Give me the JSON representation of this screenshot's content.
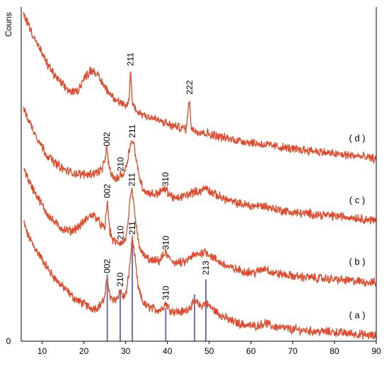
{
  "chart_data": {
    "type": "line",
    "title": "",
    "xlabel": "",
    "ylabel": "Couns",
    "xlim": [
      5,
      90
    ],
    "ylim": [
      0,
      10
    ],
    "grid": false,
    "legend": "none",
    "x_ticks": [
      10,
      20,
      30,
      40,
      50,
      60,
      70,
      80,
      90
    ],
    "y_tick_labels": [
      {
        "value": 0,
        "label": "0"
      }
    ],
    "series_color": "#e8402a",
    "noise_color": "#8a8a3a",
    "reference_color": "#6f6fb0",
    "series": [
      {
        "label": "( a )",
        "points": [
          [
            5.6,
            3.55
          ],
          [
            6.5,
            3.2
          ],
          [
            8,
            2.85
          ],
          [
            10,
            2.45
          ],
          [
            12,
            2.05
          ],
          [
            14,
            1.75
          ],
          [
            16,
            1.5
          ],
          [
            18,
            1.25
          ],
          [
            20,
            1.12
          ],
          [
            21.5,
            1.0
          ],
          [
            23,
            1.0
          ],
          [
            24,
            1.1
          ],
          [
            25,
            1.3
          ],
          [
            25.6,
            1.95
          ],
          [
            26.2,
            1.35
          ],
          [
            27,
            1.2
          ],
          [
            28,
            1.3
          ],
          [
            28.7,
            1.55
          ],
          [
            29.4,
            1.3
          ],
          [
            30.2,
            1.45
          ],
          [
            31,
            2.3
          ],
          [
            31.6,
            3.1
          ],
          [
            32.3,
            2.4
          ],
          [
            33,
            1.6
          ],
          [
            34,
            1.2
          ],
          [
            35,
            1.05
          ],
          [
            36,
            1.0
          ],
          [
            37,
            0.95
          ],
          [
            38.5,
            0.95
          ],
          [
            39.6,
            1.15
          ],
          [
            40.5,
            0.95
          ],
          [
            42,
            0.88
          ],
          [
            44,
            0.88
          ],
          [
            46,
            1.1
          ],
          [
            47,
            1.15
          ],
          [
            48,
            1.05
          ],
          [
            49.2,
            1.15
          ],
          [
            50,
            1.05
          ],
          [
            52,
            0.85
          ],
          [
            55,
            0.62
          ],
          [
            58,
            0.5
          ],
          [
            61,
            0.45
          ],
          [
            63.5,
            0.55
          ],
          [
            65,
            0.45
          ],
          [
            70,
            0.35
          ],
          [
            75,
            0.3
          ],
          [
            80,
            0.27
          ],
          [
            85,
            0.22
          ],
          [
            90,
            0.15
          ]
        ]
      },
      {
        "label": "( b )",
        "points": [
          [
            5.6,
            5.2
          ],
          [
            7,
            4.75
          ],
          [
            9,
            4.3
          ],
          [
            11,
            3.85
          ],
          [
            13,
            3.55
          ],
          [
            15,
            3.35
          ],
          [
            17,
            3.3
          ],
          [
            19,
            3.45
          ],
          [
            21,
            3.7
          ],
          [
            22,
            3.8
          ],
          [
            23,
            3.7
          ],
          [
            24,
            3.5
          ],
          [
            25,
            3.35
          ],
          [
            25.6,
            4.2
          ],
          [
            26.2,
            3.3
          ],
          [
            27,
            3.0
          ],
          [
            28,
            2.95
          ],
          [
            28.8,
            2.95
          ],
          [
            29.5,
            2.95
          ],
          [
            30.3,
            3.2
          ],
          [
            31,
            4.1
          ],
          [
            31.5,
            4.55
          ],
          [
            32.1,
            3.9
          ],
          [
            33,
            3.0
          ],
          [
            34,
            2.6
          ],
          [
            35,
            2.5
          ],
          [
            36,
            2.4
          ],
          [
            38,
            2.4
          ],
          [
            39.6,
            2.65
          ],
          [
            40.5,
            2.45
          ],
          [
            42,
            2.35
          ],
          [
            44,
            2.35
          ],
          [
            46,
            2.55
          ],
          [
            47.5,
            2.6
          ],
          [
            49,
            2.7
          ],
          [
            50,
            2.6
          ],
          [
            52,
            2.4
          ],
          [
            55,
            2.2
          ],
          [
            58,
            2.1
          ],
          [
            61,
            2.05
          ],
          [
            63.5,
            2.2
          ],
          [
            65,
            2.05
          ],
          [
            70,
            1.95
          ],
          [
            75,
            1.9
          ],
          [
            80,
            1.85
          ],
          [
            85,
            1.8
          ],
          [
            90,
            1.75
          ]
        ]
      },
      {
        "label": "( c )",
        "points": [
          [
            5.6,
            6.95
          ],
          [
            7,
            6.55
          ],
          [
            9,
            6.05
          ],
          [
            11,
            5.6
          ],
          [
            13,
            5.35
          ],
          [
            15,
            5.15
          ],
          [
            17,
            5.05
          ],
          [
            19,
            5.0
          ],
          [
            21,
            5.0
          ],
          [
            23,
            5.05
          ],
          [
            24.5,
            5.15
          ],
          [
            25.5,
            5.75
          ],
          [
            26.1,
            5.15
          ],
          [
            27,
            4.9
          ],
          [
            28,
            4.85
          ],
          [
            28.8,
            5.0
          ],
          [
            29.6,
            5.0
          ],
          [
            30.4,
            5.4
          ],
          [
            31.3,
            6.0
          ],
          [
            32,
            5.9
          ],
          [
            32.8,
            5.2
          ],
          [
            34,
            4.6
          ],
          [
            35,
            4.45
          ],
          [
            37,
            4.4
          ],
          [
            39.5,
            4.55
          ],
          [
            40.5,
            4.4
          ],
          [
            42,
            4.25
          ],
          [
            44,
            4.35
          ],
          [
            46,
            4.45
          ],
          [
            48,
            4.5
          ],
          [
            49.3,
            4.6
          ],
          [
            50.5,
            4.45
          ],
          [
            53,
            4.3
          ],
          [
            56,
            4.15
          ],
          [
            60,
            4.05
          ],
          [
            63,
            4.05
          ],
          [
            66,
            3.95
          ],
          [
            70,
            3.85
          ],
          [
            75,
            3.8
          ],
          [
            80,
            3.75
          ],
          [
            85,
            3.7
          ],
          [
            90,
            3.6
          ]
        ]
      },
      {
        "label": "( d )",
        "points": [
          [
            5.6,
            9.8
          ],
          [
            7,
            9.4
          ],
          [
            9,
            8.85
          ],
          [
            11,
            8.35
          ],
          [
            13,
            7.95
          ],
          [
            15,
            7.65
          ],
          [
            17,
            7.45
          ],
          [
            18.5,
            7.5
          ],
          [
            20,
            7.85
          ],
          [
            21.5,
            8.1
          ],
          [
            22.5,
            8.1
          ],
          [
            24,
            7.8
          ],
          [
            26,
            7.45
          ],
          [
            28,
            7.2
          ],
          [
            30,
            7.0
          ],
          [
            30.8,
            7.2
          ],
          [
            31.2,
            8.15
          ],
          [
            31.6,
            7.1
          ],
          [
            33,
            6.85
          ],
          [
            35,
            6.75
          ],
          [
            37,
            6.65
          ],
          [
            39,
            6.55
          ],
          [
            41,
            6.45
          ],
          [
            43,
            6.4
          ],
          [
            44.5,
            6.35
          ],
          [
            45.3,
            7.3
          ],
          [
            45.7,
            6.35
          ],
          [
            47,
            6.3
          ],
          [
            50,
            6.2
          ],
          [
            55,
            6.05
          ],
          [
            60,
            5.95
          ],
          [
            65,
            5.85
          ],
          [
            70,
            5.75
          ],
          [
            75,
            5.7
          ],
          [
            80,
            5.6
          ],
          [
            85,
            5.55
          ],
          [
            90,
            5.45
          ]
        ]
      }
    ],
    "peak_annotations": [
      {
        "curve": "( d )",
        "label": "211",
        "x": 31.2,
        "y": 8.15
      },
      {
        "curve": "( d )",
        "label": "222",
        "x": 45.3,
        "y": 7.3
      },
      {
        "curve": "( c )",
        "label": "002",
        "x": 25.5,
        "y": 5.75
      },
      {
        "curve": "( c )",
        "label": "210",
        "x": 28.8,
        "y": 5.0
      },
      {
        "curve": "( c )",
        "label": "211",
        "x": 31.6,
        "y": 6.0
      },
      {
        "curve": "( c )",
        "label": "310",
        "x": 39.5,
        "y": 4.55
      },
      {
        "curve": "( b )",
        "label": "002",
        "x": 25.6,
        "y": 4.2
      },
      {
        "curve": "( b )",
        "label": "210",
        "x": 28.8,
        "y": 2.95
      },
      {
        "curve": "( b )",
        "label": "211",
        "x": 31.5,
        "y": 4.55
      },
      {
        "curve": "( b )",
        "label": "310",
        "x": 39.6,
        "y": 2.65
      },
      {
        "curve": "( a )",
        "label": "002",
        "x": 25.6,
        "y": 1.95
      },
      {
        "curve": "( a )",
        "label": "210",
        "x": 28.7,
        "y": 1.55
      },
      {
        "curve": "( a )",
        "label": "211",
        "x": 31.6,
        "y": 3.1
      },
      {
        "curve": "( a )",
        "label": "310",
        "x": 39.6,
        "y": 1.15
      },
      {
        "curve": "( a )",
        "label": "213",
        "x": 49.2,
        "y": 1.9
      }
    ],
    "reference_lines": [
      {
        "x": 25.6,
        "height": 2.0
      },
      {
        "x": 28.7,
        "height": 1.55
      },
      {
        "x": 31.6,
        "height": 3.05
      },
      {
        "x": 39.6,
        "height": 1.0
      },
      {
        "x": 46.5,
        "height": 1.4
      },
      {
        "x": 49.2,
        "height": 1.85
      }
    ]
  }
}
